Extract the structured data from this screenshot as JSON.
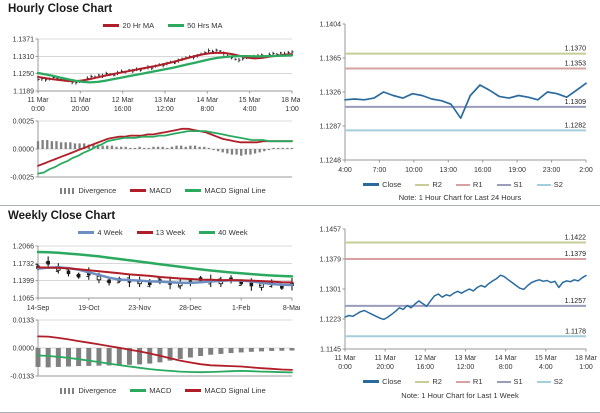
{
  "colors": {
    "red": "#b01e28",
    "green": "#2aa95f",
    "gray_bars": "#808080",
    "blue_close": "#2a6b9f",
    "blue_week": "#6b8fc2",
    "r2": "#c8cc96",
    "r1": "#d7a0a2",
    "s1": "#9a9cbc",
    "s2": "#a5cedb",
    "bar_black": "#1a1a1a",
    "grid": "#d9d9d9",
    "axis": "#999999"
  },
  "sections": [
    {
      "title": "Hourly Close Chart",
      "ma_legend": [
        {
          "label": "20 Hr MA",
          "color": "#b01e28"
        },
        {
          "label": "50 Hrs MA",
          "color": "#2aa95f"
        }
      ],
      "macd_legend": [
        {
          "label": "Divergence",
          "color": "#808080"
        },
        {
          "label": "MACD",
          "color": "#b01e28"
        },
        {
          "label": "MACD Signal Line",
          "color": "#2aa95f"
        }
      ],
      "levels_legend": [
        {
          "label": "Close",
          "color": "#2a6b9f"
        },
        {
          "label": "R2",
          "color": "#c8cc96"
        },
        {
          "label": "R1",
          "color": "#d7a0a2"
        },
        {
          "label": "S1",
          "color": "#9a9cbc"
        },
        {
          "label": "S2",
          "color": "#a5cedb"
        }
      ],
      "note": "Note: 1 Hour Chart for Last 24 Hours"
    },
    {
      "title": "Weekly Close Chart",
      "ma_legend": [
        {
          "label": "4 Week",
          "color": "#6b8fc2"
        },
        {
          "label": "13 Week",
          "color": "#b01e28"
        },
        {
          "label": "40 Week",
          "color": "#2aa95f"
        }
      ],
      "macd_legend": [
        {
          "label": "Divergence",
          "color": "#808080"
        },
        {
          "label": "MACD",
          "color": "#2aa95f"
        },
        {
          "label": "MACD Signal Line",
          "color": "#b01e28"
        }
      ],
      "levels_legend": [
        {
          "label": "Close",
          "color": "#2a6b9f"
        },
        {
          "label": "R2",
          "color": "#c8cc96"
        },
        {
          "label": "R1",
          "color": "#d7a0a2"
        },
        {
          "label": "S1",
          "color": "#9a9cbc"
        },
        {
          "label": "S2",
          "color": "#a5cedb"
        }
      ],
      "note": "Note: 1 Hour Chart for Last 1 Week"
    }
  ],
  "chart_data": [
    {
      "id": "hourly_price",
      "type": "line",
      "variant": "price-ma",
      "bar_style": "hourly",
      "title": "Hourly Close Chart",
      "yticks": [
        1.1371,
        1.131,
        1.125,
        1.1189
      ],
      "ytick_labels": [
        "1.1371",
        "1.1310",
        "1.1250",
        "1.1189"
      ],
      "xlabels2": [
        [
          "11 Mar",
          "0:00"
        ],
        [
          "11 Mar",
          "20:00"
        ],
        [
          "12 Mar",
          "16:00"
        ],
        [
          "13 Mar",
          "12:00"
        ],
        [
          "14 Mar",
          "8:00"
        ],
        [
          "15 Mar",
          "4:00"
        ],
        [
          "18 Mar",
          "1:00"
        ]
      ],
      "bars": {
        "name": "Hourly Close",
        "color": "#1a1a1a",
        "values": [
          1.1229,
          1.1232,
          1.1228,
          1.1231,
          1.1236,
          1.1233,
          1.123,
          1.1227,
          1.1224,
          1.122,
          1.1218,
          1.1222,
          1.1225,
          1.1233,
          1.124,
          1.1238,
          1.1245,
          1.1242,
          1.125,
          1.1247,
          1.1244,
          1.1252,
          1.1258,
          1.1255,
          1.1262,
          1.1259,
          1.1265,
          1.1262,
          1.1268,
          1.1272,
          1.1269,
          1.1276,
          1.1282,
          1.1279,
          1.1285,
          1.129,
          1.1287,
          1.1295,
          1.13,
          1.1305,
          1.131,
          1.1307,
          1.1312,
          1.1318,
          1.1324,
          1.133,
          1.1327,
          1.1332,
          1.1329,
          1.132,
          1.1312,
          1.1305,
          1.13,
          1.1297,
          1.1302,
          1.1306,
          1.131,
          1.1308,
          1.1312,
          1.1315,
          1.1311,
          1.1316,
          1.132,
          1.1317,
          1.1322,
          1.1319,
          1.1323,
          1.1326
        ]
      },
      "series": [
        {
          "name": "20 Hr MA",
          "color": "#b01e28",
          "width": 2,
          "values": [
            1.1238,
            1.1234,
            1.123,
            1.1227,
            1.1224,
            1.1223,
            1.1226,
            1.1231,
            1.1237,
            1.1243,
            1.1248,
            1.1253,
            1.1258,
            1.1263,
            1.1268,
            1.1273,
            1.1278,
            1.1284,
            1.129,
            1.1297,
            1.1304,
            1.1311,
            1.1317,
            1.1321,
            1.1323,
            1.1322,
            1.1318,
            1.1312,
            1.1306,
            1.1303,
            1.1305,
            1.1309,
            1.1313,
            1.1316,
            1.1318
          ]
        },
        {
          "name": "50 Hrs MA",
          "color": "#2aa95f",
          "width": 2.3,
          "values": [
            1.1252,
            1.1247,
            1.1242,
            1.1236,
            1.123,
            1.1225,
            1.1221,
            1.1219,
            1.1221,
            1.1225,
            1.123,
            1.1235,
            1.124,
            1.1245,
            1.125,
            1.1255,
            1.126,
            1.1265,
            1.127,
            1.1276,
            1.1282,
            1.1288,
            1.1294,
            1.13,
            1.1305,
            1.1308,
            1.131,
            1.1311,
            1.1311,
            1.131,
            1.131,
            1.1311,
            1.1312,
            1.1313,
            1.1314
          ]
        }
      ]
    },
    {
      "id": "hourly_macd",
      "type": "bar",
      "variant": "macd",
      "yticks": [
        0.0025,
        0.0,
        -0.0025
      ],
      "ytick_labels": [
        "0.0025",
        "0.0000",
        "-0.0025"
      ],
      "divergence": {
        "name": "Divergence",
        "color": "#808080",
        "values": [
          0.0007,
          0.0008,
          0.0008,
          0.0007,
          0.0007,
          0.0006,
          0.0006,
          0.0006,
          0.0005,
          0.0005,
          0.0005,
          0.0004,
          0.0004,
          0.0004,
          0.0003,
          0.0003,
          0.0003,
          0.0002,
          0.0002,
          0.0002,
          0.0001,
          0.0001,
          0.0002,
          0.0001,
          0.0001,
          0.0002,
          0.0002,
          0.0002,
          0.0001,
          0.0002,
          0.0003,
          0.0003,
          0.0002,
          0.0003,
          0.0003,
          0.0002,
          0.0002,
          0.0001,
          -0.0001,
          -0.0002,
          -0.0003,
          -0.0004,
          -0.0005,
          -0.0005,
          -0.0006,
          -0.0005,
          -0.0005,
          -0.0004,
          -0.0003,
          -0.0002,
          -0.0001,
          0.0001,
          0.0001,
          0.0001,
          0.0001,
          0.0001
        ]
      },
      "series": [
        {
          "name": "MACD",
          "color": "#b01e28",
          "width": 1.8,
          "values": [
            -0.0015,
            -0.0013,
            -0.0011,
            -0.0009,
            -0.0007,
            -0.0005,
            -0.0003,
            -0.0001,
            0.0001,
            0.0003,
            0.0005,
            0.0007,
            0.0009,
            0.001,
            0.0011,
            0.0011,
            0.0012,
            0.0012,
            0.0012,
            0.0013,
            0.0013,
            0.0014,
            0.0015,
            0.0016,
            0.0017,
            0.0018,
            0.0018,
            0.0017,
            0.0016,
            0.0015,
            0.0013,
            0.0011,
            0.0009,
            0.0008,
            0.0007,
            0.0006,
            0.0006,
            0.0006,
            0.0006,
            0.0007,
            0.0007,
            0.0007,
            0.0007,
            0.0007,
            0.0007
          ]
        },
        {
          "name": "MACD Signal Line",
          "color": "#2aa95f",
          "width": 1.8,
          "values": [
            -0.0022,
            -0.0021,
            -0.0018,
            -0.0016,
            -0.0013,
            -0.0011,
            -0.0008,
            -0.0006,
            -0.0003,
            -0.0001,
            0.0002,
            0.0004,
            0.0007,
            0.0008,
            0.0009,
            0.001,
            0.001,
            0.001,
            0.0011,
            0.0011,
            0.0011,
            0.0012,
            0.0012,
            0.0013,
            0.0014,
            0.0015,
            0.0016,
            0.0016,
            0.0016,
            0.0016,
            0.0015,
            0.0014,
            0.0013,
            0.0012,
            0.0011,
            0.001,
            0.0009,
            0.0008,
            0.0008,
            0.0008,
            0.0007,
            0.0007,
            0.0007,
            0.0007,
            0.0007
          ]
        }
      ]
    },
    {
      "id": "hourly_levels",
      "type": "line",
      "variant": "levels",
      "note": "Note: 1 Hour Chart for Last 24 Hours",
      "yticks": [
        1.1404,
        1.1365,
        1.1326,
        1.1287,
        1.1248
      ],
      "ytick_labels": [
        "1.1404",
        "1.1365",
        "1.1326",
        "1.1287",
        "1.1248"
      ],
      "xlabels": [
        "4:00",
        "7:00",
        "10:00",
        "13:00",
        "16:00",
        "19:00",
        "23:00",
        "2:00"
      ],
      "levels": [
        {
          "name": "R2",
          "value": 1.137,
          "label": "1.1370",
          "color": "#c8cc96"
        },
        {
          "name": "R1",
          "value": 1.1353,
          "label": "1.1353",
          "color": "#d7a0a2"
        },
        {
          "name": "S1",
          "value": 1.1309,
          "label": "1.1309",
          "color": "#9a9cbc"
        },
        {
          "name": "S2",
          "value": 1.1282,
          "label": "1.1282",
          "color": "#a5cedb"
        }
      ],
      "close": {
        "name": "Close",
        "color": "#2a6b9f",
        "width": 1.7,
        "values": [
          1.1317,
          1.1318,
          1.1317,
          1.1319,
          1.1326,
          1.1322,
          1.1319,
          1.1324,
          1.1322,
          1.1318,
          1.1316,
          1.1312,
          1.1296,
          1.1322,
          1.1334,
          1.1328,
          1.1321,
          1.1319,
          1.1322,
          1.132,
          1.1317,
          1.1326,
          1.1324,
          1.132,
          1.1328,
          1.1336
        ]
      }
    },
    {
      "id": "weekly_price",
      "type": "line",
      "variant": "price-ma",
      "bar_style": "weekly",
      "title": "Weekly Close Chart",
      "yticks": [
        1.2066,
        1.1732,
        1.1399,
        1.1065
      ],
      "ytick_labels": [
        "1.2066",
        "1.1732",
        "1.1399",
        "1.1065"
      ],
      "xlabels": [
        "14-Sep",
        "19-Oct",
        "23-Nov",
        "28-Dec",
        "1-Feb",
        "8-Mar"
      ],
      "bars": {
        "name": "Weekly Close",
        "color": "#1a1a1a",
        "values": [
          1.1655,
          1.1745,
          1.1635,
          1.156,
          1.1495,
          1.1535,
          1.145,
          1.1385,
          1.1415,
          1.1395,
          1.1375,
          1.135,
          1.139,
          1.1355,
          1.1335,
          1.137,
          1.143,
          1.1395,
          1.1375,
          1.1425,
          1.1365,
          1.1325,
          1.1305,
          1.1345,
          1.128,
          1.133
        ]
      },
      "series": [
        {
          "name": "4 Week",
          "color": "#6b8fc2",
          "width": 2.5,
          "values": [
            1.163,
            1.165,
            1.1655,
            1.164,
            1.161,
            1.156,
            1.151,
            1.1455,
            1.142,
            1.141,
            1.14,
            1.1385,
            1.138,
            1.137,
            1.136,
            1.1355,
            1.137,
            1.1385,
            1.1395,
            1.1405,
            1.14,
            1.1385,
            1.136,
            1.1335,
            1.132,
            1.1315
          ]
        },
        {
          "name": "13 Week",
          "color": "#b01e28",
          "width": 2,
          "values": [
            1.1655,
            1.165,
            1.1645,
            1.1635,
            1.162,
            1.16,
            1.158,
            1.156,
            1.154,
            1.152,
            1.1505,
            1.149,
            1.147,
            1.1455,
            1.144,
            1.143,
            1.142,
            1.1415,
            1.141,
            1.141,
            1.1405,
            1.14,
            1.139,
            1.138,
            1.137,
            1.1365
          ]
        },
        {
          "name": "40 Week",
          "color": "#2aa95f",
          "width": 2.5,
          "values": [
            1.195,
            1.1945,
            1.1935,
            1.192,
            1.1905,
            1.1885,
            1.1865,
            1.184,
            1.1815,
            1.179,
            1.1765,
            1.174,
            1.1715,
            1.169,
            1.1665,
            1.164,
            1.1615,
            1.1595,
            1.1575,
            1.1555,
            1.154,
            1.1525,
            1.151,
            1.1498,
            1.1488,
            1.148
          ]
        }
      ]
    },
    {
      "id": "weekly_macd",
      "type": "bar",
      "variant": "macd",
      "yticks": [
        0.0133,
        0.0,
        -0.0133
      ],
      "ytick_labels": [
        "0.0133",
        "0.0000",
        "-0.0133"
      ],
      "divergence": {
        "name": "Divergence",
        "color": "#808080",
        "values": [
          -0.009,
          -0.0092,
          -0.009,
          -0.0088,
          -0.0086,
          -0.0085,
          -0.0084,
          -0.0083,
          -0.0082,
          -0.008,
          -0.0078,
          -0.0074,
          -0.0068,
          -0.006,
          -0.0052,
          -0.0045,
          -0.0038,
          -0.0032,
          -0.0028,
          -0.0024,
          -0.0021,
          -0.0018,
          -0.0016,
          -0.0014,
          -0.0013,
          -0.0012
        ]
      },
      "series": [
        {
          "name": "MACD",
          "color": "#2aa95f",
          "width": 1.8,
          "values": [
            -0.0035,
            -0.0038,
            -0.0042,
            -0.0047,
            -0.0053,
            -0.006,
            -0.0067,
            -0.0074,
            -0.0081,
            -0.0088,
            -0.0094,
            -0.01,
            -0.0105,
            -0.0109,
            -0.0112,
            -0.0114,
            -0.0115,
            -0.0114,
            -0.0112,
            -0.011,
            -0.0109,
            -0.011,
            -0.0112,
            -0.0113,
            -0.0115,
            -0.0116
          ]
        },
        {
          "name": "MACD Signal Line",
          "color": "#b01e28",
          "width": 1.8,
          "values": [
            0.0055,
            0.0054,
            0.0048,
            0.0041,
            0.0033,
            0.0025,
            0.0017,
            0.0009,
            0.0001,
            -0.0008,
            -0.0016,
            -0.0026,
            -0.0037,
            -0.0049,
            -0.006,
            -0.0069,
            -0.0077,
            -0.0082,
            -0.0084,
            -0.0086,
            -0.0088,
            -0.0092,
            -0.0096,
            -0.0099,
            -0.0102,
            -0.0104
          ]
        }
      ]
    },
    {
      "id": "weekly_levels",
      "type": "line",
      "variant": "levels",
      "note": "Note: 1 Hour Chart for Last 1 Week",
      "yticks": [
        1.1457,
        1.1379,
        1.1301,
        1.1223,
        1.1145
      ],
      "ytick_labels": [
        "1.1457",
        "1.1379",
        "1.1301",
        "1.1223",
        "1.1145"
      ],
      "xlabels2": [
        [
          "11 Mar",
          "0:00"
        ],
        [
          "11 Mar",
          "20:00"
        ],
        [
          "12 Mar",
          "16:00"
        ],
        [
          "13 Mar",
          "12:00"
        ],
        [
          "14 Mar",
          "8:00"
        ],
        [
          "15 Mar",
          "4:00"
        ],
        [
          "18 Mar",
          "1:00"
        ]
      ],
      "levels": [
        {
          "name": "R2",
          "value": 1.1422,
          "label": "1.1422",
          "color": "#c8cc96"
        },
        {
          "name": "R1",
          "value": 1.1379,
          "label": "1.1379",
          "color": "#d7a0a2"
        },
        {
          "name": "S1",
          "value": 1.1257,
          "label": "1.1257",
          "color": "#9a9cbc"
        },
        {
          "name": "S2",
          "value": 1.1178,
          "label": "1.1178",
          "color": "#a5cedb"
        }
      ],
      "close": {
        "name": "Close",
        "color": "#2a6b9f",
        "width": 1.5,
        "values": [
          1.1228,
          1.1232,
          1.123,
          1.1236,
          1.1242,
          1.1245,
          1.124,
          1.1235,
          1.123,
          1.1225,
          1.1222,
          1.1228,
          1.1235,
          1.1243,
          1.1252,
          1.1248,
          1.1258,
          1.1252,
          1.1262,
          1.127,
          1.1263,
          1.1256,
          1.127,
          1.1283,
          1.1288,
          1.128,
          1.1286,
          1.1283,
          1.129,
          1.1295,
          1.129,
          1.1296,
          1.1301,
          1.1296,
          1.1305,
          1.131,
          1.1306,
          1.1315,
          1.1322,
          1.1328,
          1.1337,
          1.1333,
          1.1325,
          1.1318,
          1.131,
          1.1303,
          1.13,
          1.131,
          1.1318,
          1.1322,
          1.1325,
          1.1321,
          1.1323,
          1.1318,
          1.1321,
          1.1305,
          1.1318,
          1.1322,
          1.132,
          1.1325,
          1.1322,
          1.133,
          1.1336
        ]
      }
    }
  ]
}
